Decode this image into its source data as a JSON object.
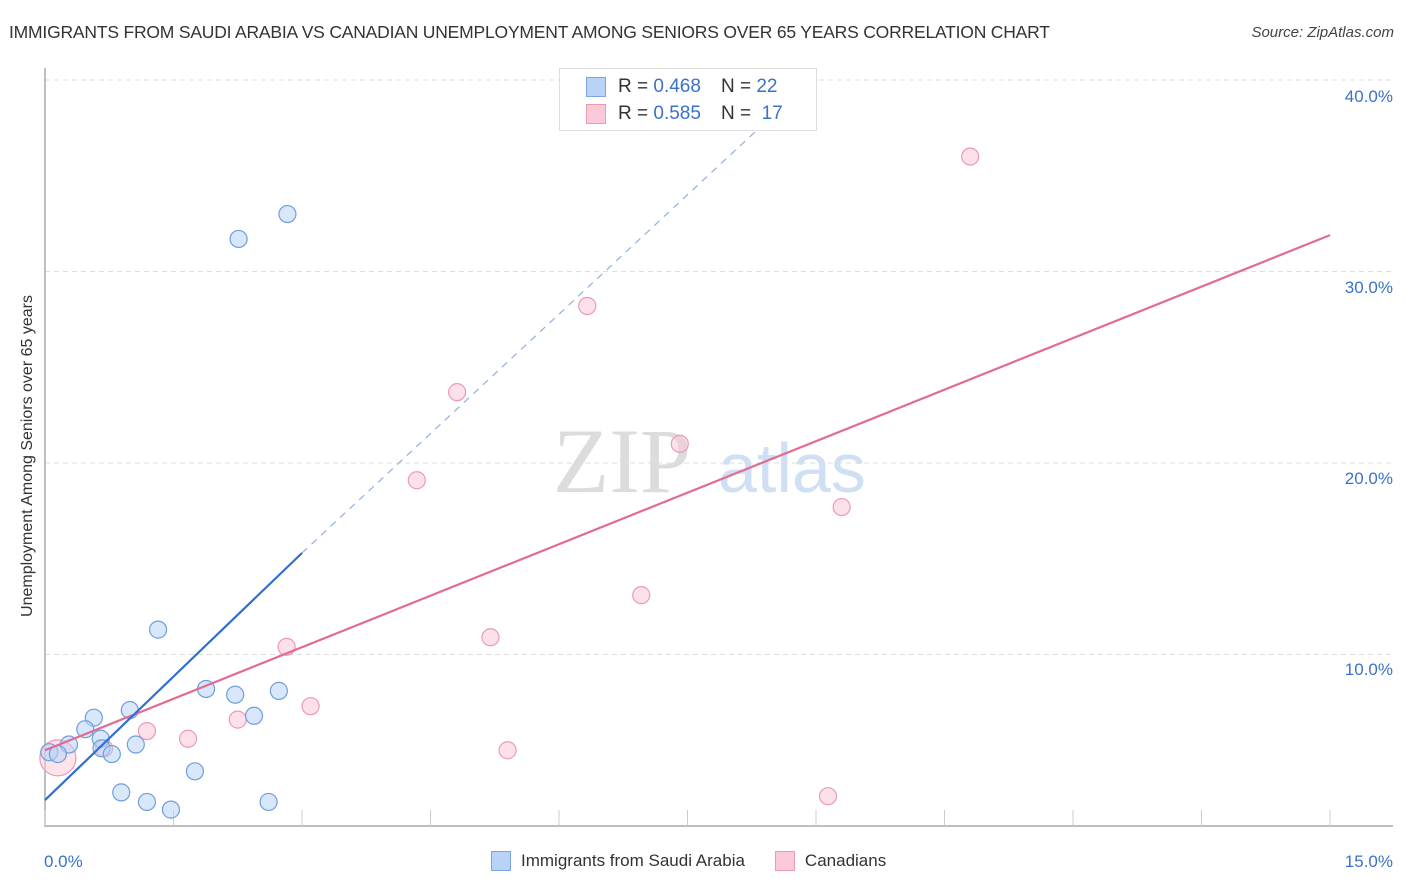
{
  "header": {
    "title": "IMMIGRANTS FROM SAUDI ARABIA VS CANADIAN UNEMPLOYMENT AMONG SENIORS OVER 65 YEARS CORRELATION CHART",
    "source": "Source: ZipAtlas.com"
  },
  "legend": {
    "series": [
      {
        "name": "Immigrants from Saudi Arabia",
        "r_label": "R =",
        "r_value": "0.468",
        "n_label": "N =",
        "n_value": "22",
        "fill": "#b8d3f5",
        "stroke": "#7aa6e0"
      },
      {
        "name": "Canadians",
        "r_label": "R =",
        "r_value": "0.585",
        "n_label": "N =",
        "n_value": "17",
        "fill": "#fbc9d8",
        "stroke": "#eb9ab4"
      }
    ]
  },
  "axes": {
    "ylabel": "Unemployment Among Seniors over 65 years",
    "y_ticks": [
      "40.0%",
      "30.0%",
      "20.0%",
      "10.0%"
    ],
    "x_min_label": "0.0%",
    "x_max_label": "15.0%"
  },
  "watermark": {
    "zip": "ZIP",
    "atlas": "atlas"
  },
  "colors": {
    "blue": "#2f6fcf",
    "pink": "#e36a93",
    "tick_text": "#3a72c8",
    "grid": "#dddddd"
  },
  "chart_data": {
    "type": "scatter",
    "title": "IMMIGRANTS FROM SAUDI ARABIA VS CANADIAN UNEMPLOYMENT AMONG SENIORS OVER 65 YEARS CORRELATION CHART",
    "xlabel": "",
    "ylabel": "Unemployment Among Seniors over 65 years",
    "xlim": [
      0,
      15
    ],
    "ylim": [
      0,
      41.5
    ],
    "x_ticks": [
      0,
      15
    ],
    "y_ticks": [
      10,
      20,
      30,
      40
    ],
    "grid": true,
    "legend_position": "top-center",
    "series": [
      {
        "name": "Immigrants from Saudi Arabia",
        "R": 0.468,
        "N": 22,
        "color": "#7aa6e0",
        "points": [
          [
            2.83,
            33.0
          ],
          [
            2.26,
            31.7
          ],
          [
            1.32,
            11.3
          ],
          [
            1.88,
            8.2
          ],
          [
            2.73,
            8.1
          ],
          [
            2.22,
            7.9
          ],
          [
            0.99,
            7.1
          ],
          [
            0.57,
            6.7
          ],
          [
            2.44,
            6.8
          ],
          [
            0.47,
            6.1
          ],
          [
            0.65,
            5.6
          ],
          [
            1.06,
            5.3
          ],
          [
            0.28,
            5.3
          ],
          [
            0.66,
            5.1
          ],
          [
            0.78,
            4.8
          ],
          [
            0.05,
            4.9
          ],
          [
            0.15,
            4.8
          ],
          [
            1.75,
            3.9
          ],
          [
            0.89,
            2.8
          ],
          [
            1.19,
            2.3
          ],
          [
            1.47,
            1.9
          ],
          [
            2.61,
            2.3
          ]
        ],
        "trendline": {
          "x": [
            0,
            3.0
          ],
          "y": [
            2.4,
            15.3
          ],
          "dashed_extension_to": [
            8.46,
            38.0
          ]
        }
      },
      {
        "name": "Canadians",
        "R": 0.585,
        "N": 17,
        "color": "#eb9ab4",
        "points": [
          [
            10.8,
            36.0
          ],
          [
            6.33,
            28.2
          ],
          [
            4.81,
            23.7
          ],
          [
            7.41,
            21.0
          ],
          [
            4.34,
            19.1
          ],
          [
            9.3,
            17.7
          ],
          [
            6.96,
            13.1
          ],
          [
            5.2,
            10.9
          ],
          [
            2.82,
            10.4
          ],
          [
            3.1,
            7.3
          ],
          [
            2.25,
            6.6
          ],
          [
            1.19,
            6.0
          ],
          [
            1.67,
            5.6
          ],
          [
            0.69,
            5.1
          ],
          [
            5.4,
            5.0
          ],
          [
            9.14,
            2.6
          ],
          [
            0.15,
            4.6
          ]
        ],
        "trendline": {
          "x": [
            0,
            15
          ],
          "y": [
            5.0,
            31.9
          ]
        }
      }
    ]
  }
}
